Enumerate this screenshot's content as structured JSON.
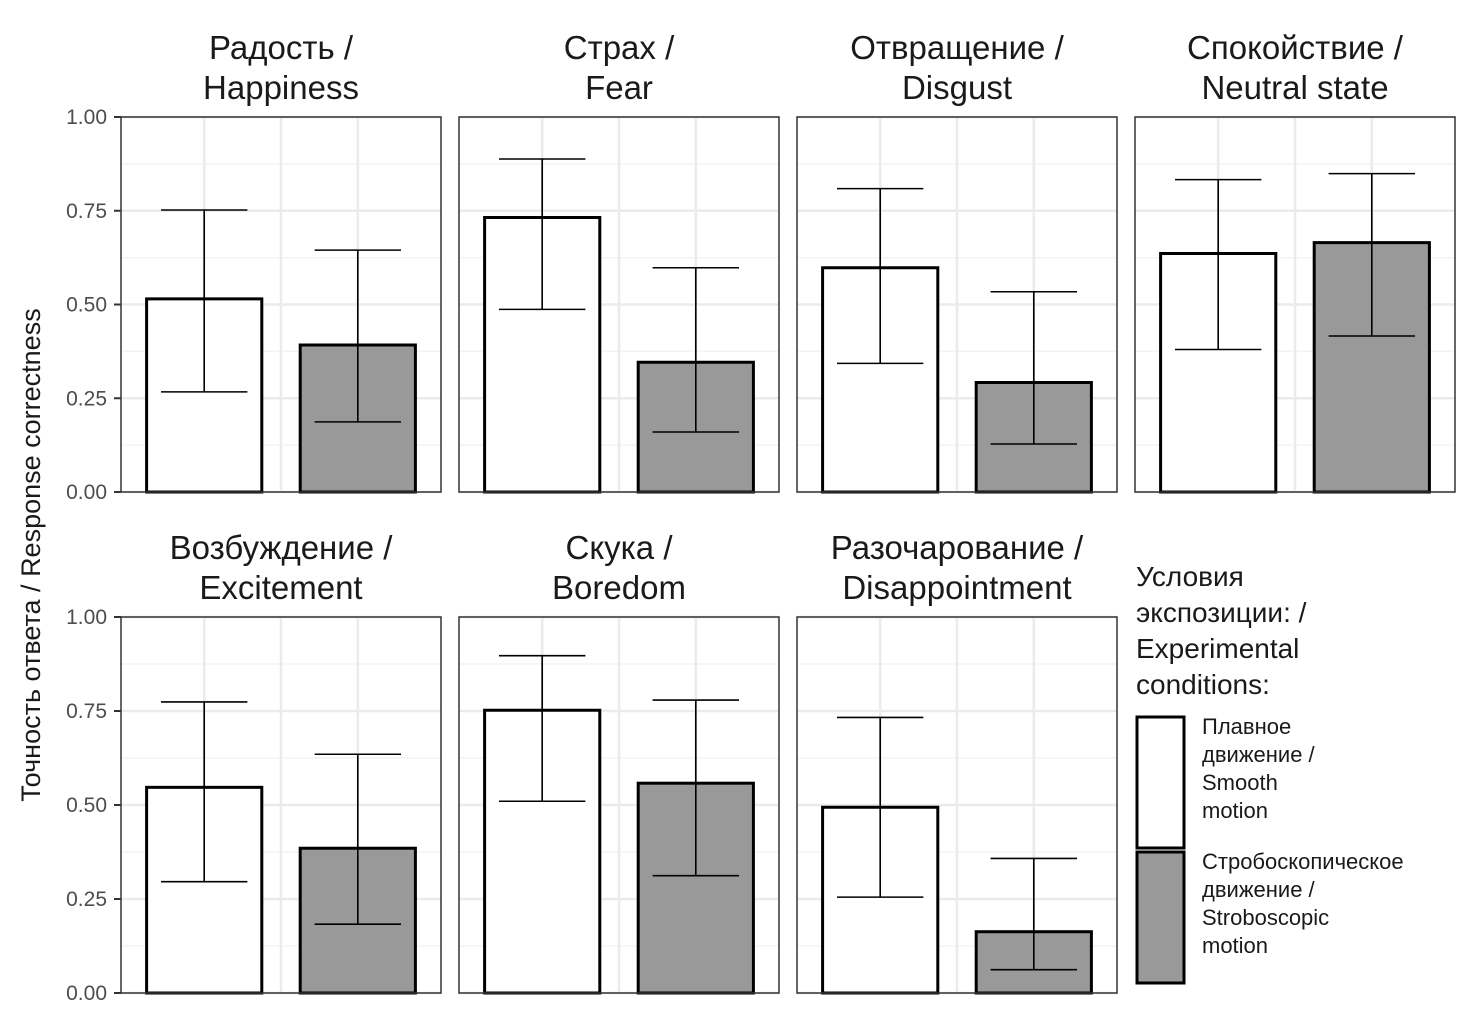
{
  "chart_data": {
    "type": "bar",
    "layout": "faceted 2x4 grid, error bars",
    "ylabel": "Точность ответа / Response correctness",
    "xlabel": "",
    "ylim": [
      0,
      1
    ],
    "yticks": [
      "0.00",
      "0.25",
      "0.50",
      "0.75",
      "1.00"
    ],
    "ytick_values": [
      0,
      0.25,
      0.5,
      0.75,
      1.0
    ],
    "grid": true,
    "legend": {
      "title": [
        "Условия",
        "экспозиции: /",
        "Experimental",
        "conditions:"
      ],
      "placement": "bottom-right",
      "entries": [
        {
          "key": "smooth",
          "label": [
            "Плавное",
            "движение /",
            "Smooth",
            "motion"
          ],
          "color": "#ffffff"
        },
        {
          "key": "strobo",
          "label": [
            "Стробоскопическое",
            "движение /",
            "Stroboscopic",
            "motion"
          ],
          "color": "#999999"
        }
      ]
    },
    "series_names": [
      "Плавное движение / Smooth motion",
      "Стробоскопическое движение / Stroboscopic motion"
    ],
    "panels": [
      {
        "title": [
          "Радость /",
          "Happiness"
        ],
        "smooth": {
          "value": 0.515,
          "lower": 0.267,
          "upper": 0.752
        },
        "strobo": {
          "value": 0.392,
          "lower": 0.187,
          "upper": 0.645
        }
      },
      {
        "title": [
          "Страх /",
          "Fear"
        ],
        "smooth": {
          "value": 0.732,
          "lower": 0.487,
          "upper": 0.888
        },
        "strobo": {
          "value": 0.346,
          "lower": 0.16,
          "upper": 0.598
        }
      },
      {
        "title": [
          "Отвращение /",
          "Disgust"
        ],
        "smooth": {
          "value": 0.598,
          "lower": 0.343,
          "upper": 0.809
        },
        "strobo": {
          "value": 0.292,
          "lower": 0.128,
          "upper": 0.534
        }
      },
      {
        "title": [
          "Спокойствие /",
          "Neutral state"
        ],
        "smooth": {
          "value": 0.636,
          "lower": 0.38,
          "upper": 0.833
        },
        "strobo": {
          "value": 0.665,
          "lower": 0.416,
          "upper": 0.849
        }
      },
      {
        "title": [
          "Возбуждение /",
          "Excitement"
        ],
        "smooth": {
          "value": 0.547,
          "lower": 0.296,
          "upper": 0.774
        },
        "strobo": {
          "value": 0.385,
          "lower": 0.183,
          "upper": 0.635
        }
      },
      {
        "title": [
          "Скука /",
          "Boredom"
        ],
        "smooth": {
          "value": 0.752,
          "lower": 0.51,
          "upper": 0.897
        },
        "strobo": {
          "value": 0.558,
          "lower": 0.312,
          "upper": 0.779
        }
      },
      {
        "title": [
          "Разочарование /",
          "Disappointment"
        ],
        "smooth": {
          "value": 0.494,
          "lower": 0.255,
          "upper": 0.733
        },
        "strobo": {
          "value": 0.163,
          "lower": 0.062,
          "upper": 0.358
        }
      }
    ],
    "colors": {
      "smooth_fill": "#ffffff",
      "strobo_fill": "#999999",
      "outline": "#000000",
      "panel_border": "#333333",
      "grid_major": "#ebebeb",
      "grid_minor": "#f3f3f3"
    }
  }
}
